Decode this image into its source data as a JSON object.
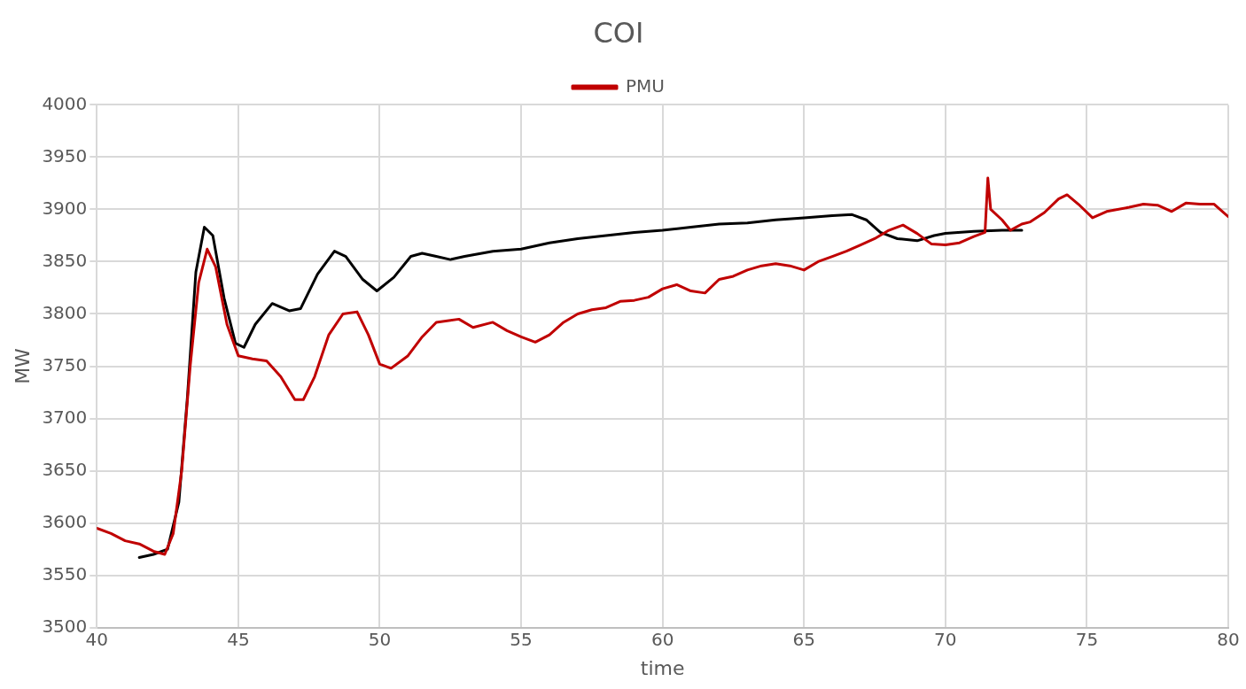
{
  "chart_data": {
    "type": "line",
    "title": "COI",
    "xlabel": "time",
    "ylabel": "MW",
    "xlim": [
      40,
      80
    ],
    "xticks": [
      40,
      45,
      50,
      55,
      60,
      65,
      70,
      75,
      80
    ],
    "ylim": [
      3500,
      4000
    ],
    "yticks": [
      3500,
      3550,
      3600,
      3650,
      3700,
      3750,
      3800,
      3850,
      3900,
      3950,
      4000
    ],
    "grid": true,
    "legend": "top",
    "marker": "none",
    "line_style": "solid",
    "series": [
      {
        "name": "PMU",
        "color": "#c00000",
        "x": [
          40,
          40.5,
          41,
          41.5,
          42,
          42.4,
          42.7,
          43,
          43.3,
          43.6,
          43.9,
          44.2,
          44.6,
          45,
          45.5,
          46,
          46.5,
          47,
          47.3,
          47.7,
          48.2,
          48.7,
          49.2,
          49.6,
          50,
          50.4,
          51,
          51.5,
          52,
          52.8,
          53.3,
          54,
          54.5,
          55,
          55.5,
          56,
          56.5,
          57,
          57.5,
          58,
          58.5,
          59,
          59.5,
          60,
          60.5,
          61,
          61.5,
          62,
          62.5,
          63,
          63.5,
          64,
          64.5,
          65,
          65.5,
          66,
          66.5,
          67,
          67.5,
          68,
          68.5,
          69,
          69.5,
          70,
          70.5,
          71,
          71.4,
          71.5,
          71.6,
          72,
          72.3,
          72.7,
          73,
          73.5,
          74,
          74.3,
          74.7,
          75.2,
          75.7,
          76.5,
          77,
          77.5,
          78,
          78.5,
          79,
          79.5,
          80
        ],
        "values": [
          3595,
          3590,
          3583,
          3580,
          3573,
          3570,
          3590,
          3650,
          3750,
          3830,
          3862,
          3845,
          3790,
          3760,
          3757,
          3755,
          3740,
          3718,
          3718,
          3740,
          3780,
          3800,
          3802,
          3780,
          3752,
          3748,
          3760,
          3778,
          3792,
          3795,
          3787,
          3792,
          3784,
          3778,
          3773,
          3780,
          3792,
          3800,
          3804,
          3806,
          3812,
          3813,
          3816,
          3824,
          3828,
          3822,
          3820,
          3833,
          3836,
          3842,
          3846,
          3848,
          3846,
          3842,
          3850,
          3855,
          3860,
          3866,
          3872,
          3880,
          3885,
          3877,
          3867,
          3866,
          3868,
          3874,
          3878,
          3930,
          3900,
          3890,
          3880,
          3886,
          3888,
          3897,
          3910,
          3914,
          3905,
          3892,
          3898,
          3902,
          3905,
          3904,
          3898,
          3906,
          3905,
          3905,
          3893
        ]
      },
      {
        "color": "#000000",
        "x": [
          41.5,
          42,
          42.5,
          42.9,
          43.2,
          43.5,
          43.8,
          44.1,
          44.5,
          44.9,
          45.2,
          45.6,
          46.2,
          46.8,
          47.2,
          47.8,
          48.4,
          48.8,
          49.4,
          49.9,
          50.5,
          51.1,
          51.5,
          52,
          52.5,
          53,
          54,
          55,
          56,
          57,
          58,
          59,
          60,
          61,
          62,
          63,
          64,
          65,
          66,
          66.7,
          67.2,
          67.7,
          68.3,
          69,
          69.6,
          70,
          71,
          72,
          72.7
        ],
        "values": [
          3567,
          3570,
          3575,
          3620,
          3720,
          3840,
          3883,
          3875,
          3815,
          3772,
          3768,
          3790,
          3810,
          3803,
          3805,
          3838,
          3860,
          3855,
          3833,
          3822,
          3835,
          3855,
          3858,
          3855,
          3852,
          3855,
          3860,
          3862,
          3868,
          3872,
          3875,
          3878,
          3880,
          3883,
          3886,
          3887,
          3890,
          3892,
          3894,
          3895,
          3890,
          3878,
          3872,
          3870,
          3875,
          3877,
          3879,
          3880,
          3880
        ]
      }
    ]
  }
}
